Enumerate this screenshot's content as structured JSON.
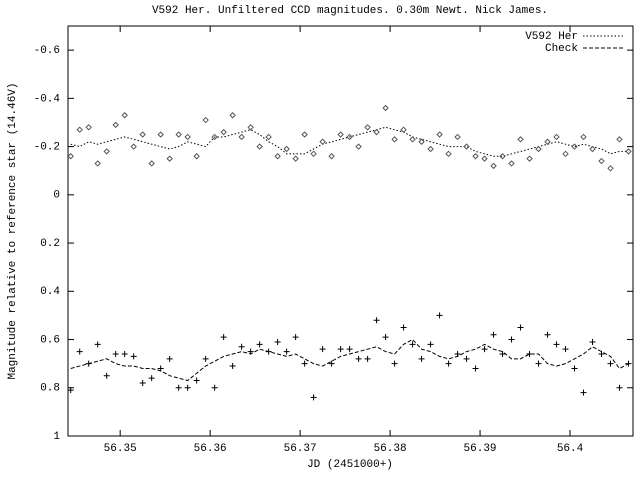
{
  "chart_data": {
    "type": "scatter",
    "title": "V592 Her. Unfiltered CCD magnitudes. 0.30m Newt.  Nick James.",
    "xlabel": "JD (2451000+)",
    "ylabel": "Magnitude relative to reference star (14.46V)",
    "xlim": [
      56.3442,
      56.407
    ],
    "ylim": [
      -0.7,
      1
    ],
    "y_inverted": true,
    "xticks": [
      56.35,
      56.36,
      56.37,
      56.38,
      56.39,
      56.4
    ],
    "yticks": [
      -0.6,
      -0.4,
      -0.2,
      0,
      0.2,
      0.4,
      0.6,
      0.8,
      1
    ],
    "legend": "upper right",
    "x": [
      56.3445,
      56.3455,
      56.3465,
      56.3475,
      56.3485,
      56.3495,
      56.3505,
      56.3515,
      56.3525,
      56.3535,
      56.3545,
      56.3555,
      56.3565,
      56.3575,
      56.3585,
      56.3595,
      56.3605,
      56.3615,
      56.3625,
      56.3635,
      56.3645,
      56.3655,
      56.3665,
      56.3675,
      56.3685,
      56.3695,
      56.3705,
      56.3715,
      56.3725,
      56.3735,
      56.3745,
      56.3755,
      56.3765,
      56.3775,
      56.3785,
      56.3795,
      56.3805,
      56.3815,
      56.3825,
      56.3835,
      56.3845,
      56.3855,
      56.3865,
      56.3875,
      56.3885,
      56.3895,
      56.3905,
      56.3915,
      56.3925,
      56.3935,
      56.3945,
      56.3955,
      56.3965,
      56.3975,
      56.3985,
      56.3995,
      56.4005,
      56.4015,
      56.4025,
      56.4035,
      56.4045,
      56.4055,
      56.4065
    ],
    "series": [
      {
        "name": "V592 Her",
        "type": "line",
        "style": "dotted",
        "color": "#000000",
        "values": [
          -0.21,
          -0.2,
          -0.22,
          -0.21,
          -0.22,
          -0.23,
          -0.24,
          -0.23,
          -0.22,
          -0.21,
          -0.2,
          -0.19,
          -0.2,
          -0.22,
          -0.21,
          -0.2,
          -0.24,
          -0.24,
          -0.25,
          -0.26,
          -0.27,
          -0.25,
          -0.22,
          -0.2,
          -0.17,
          -0.17,
          -0.17,
          -0.19,
          -0.21,
          -0.22,
          -0.23,
          -0.24,
          -0.25,
          -0.26,
          -0.27,
          -0.28,
          -0.27,
          -0.26,
          -0.24,
          -0.23,
          -0.22,
          -0.21,
          -0.2,
          -0.2,
          -0.2,
          -0.18,
          -0.17,
          -0.16,
          -0.16,
          -0.17,
          -0.18,
          -0.19,
          -0.2,
          -0.21,
          -0.22,
          -0.21,
          -0.2,
          -0.21,
          -0.2,
          -0.19,
          -0.17,
          -0.18,
          -0.18
        ]
      },
      {
        "name": "Check",
        "type": "line",
        "style": "dashed",
        "color": "#000000",
        "values": [
          0.72,
          0.71,
          0.7,
          0.69,
          0.68,
          0.7,
          0.71,
          0.71,
          0.72,
          0.72,
          0.73,
          0.75,
          0.76,
          0.77,
          0.74,
          0.71,
          0.69,
          0.67,
          0.66,
          0.65,
          0.66,
          0.64,
          0.65,
          0.66,
          0.67,
          0.66,
          0.68,
          0.7,
          0.71,
          0.69,
          0.67,
          0.66,
          0.65,
          0.64,
          0.63,
          0.65,
          0.66,
          0.62,
          0.6,
          0.64,
          0.65,
          0.67,
          0.68,
          0.67,
          0.65,
          0.64,
          0.62,
          0.64,
          0.65,
          0.68,
          0.68,
          0.66,
          0.66,
          0.7,
          0.71,
          0.7,
          0.68,
          0.66,
          0.63,
          0.65,
          0.67,
          0.72,
          0.7
        ]
      },
      {
        "type": "scatter",
        "marker": "diamond",
        "color": "#555555",
        "values": [
          -0.16,
          -0.27,
          -0.28,
          -0.13,
          -0.18,
          -0.29,
          -0.33,
          -0.2,
          -0.25,
          -0.13,
          -0.25,
          -0.15,
          -0.25,
          -0.24,
          -0.16,
          -0.31,
          -0.24,
          -0.26,
          -0.33,
          -0.24,
          -0.28,
          -0.2,
          -0.24,
          -0.16,
          -0.19,
          -0.15,
          -0.25,
          -0.17,
          -0.22,
          -0.16,
          -0.25,
          -0.24,
          -0.2,
          -0.28,
          -0.26,
          -0.36,
          -0.23,
          -0.27,
          -0.23,
          -0.22,
          -0.19,
          -0.25,
          -0.17,
          -0.24,
          -0.2,
          -0.16,
          -0.15,
          -0.12,
          -0.16,
          -0.13,
          -0.23,
          -0.15,
          -0.19,
          -0.22,
          -0.24,
          -0.17,
          -0.2,
          -0.24,
          -0.19,
          -0.14,
          -0.11,
          -0.23,
          -0.18
        ]
      },
      {
        "type": "scatter",
        "marker": "plus",
        "color": "#000000",
        "values": [
          0.81,
          0.65,
          0.7,
          0.62,
          0.75,
          0.66,
          0.66,
          0.67,
          0.78,
          0.76,
          0.72,
          0.68,
          0.8,
          0.8,
          0.77,
          0.68,
          0.8,
          0.59,
          0.71,
          0.63,
          0.65,
          0.62,
          0.65,
          0.61,
          0.65,
          0.59,
          0.7,
          0.84,
          0.64,
          0.7,
          0.64,
          0.64,
          0.68,
          0.68,
          0.52,
          0.59,
          0.7,
          0.55,
          0.62,
          0.68,
          0.62,
          0.5,
          0.7,
          0.66,
          0.68,
          0.72,
          0.64,
          0.58,
          0.66,
          0.6,
          0.55,
          0.66,
          0.7,
          0.58,
          0.62,
          0.64,
          0.72,
          0.82,
          0.61,
          0.66,
          0.7,
          0.8,
          0.7
        ]
      }
    ]
  }
}
